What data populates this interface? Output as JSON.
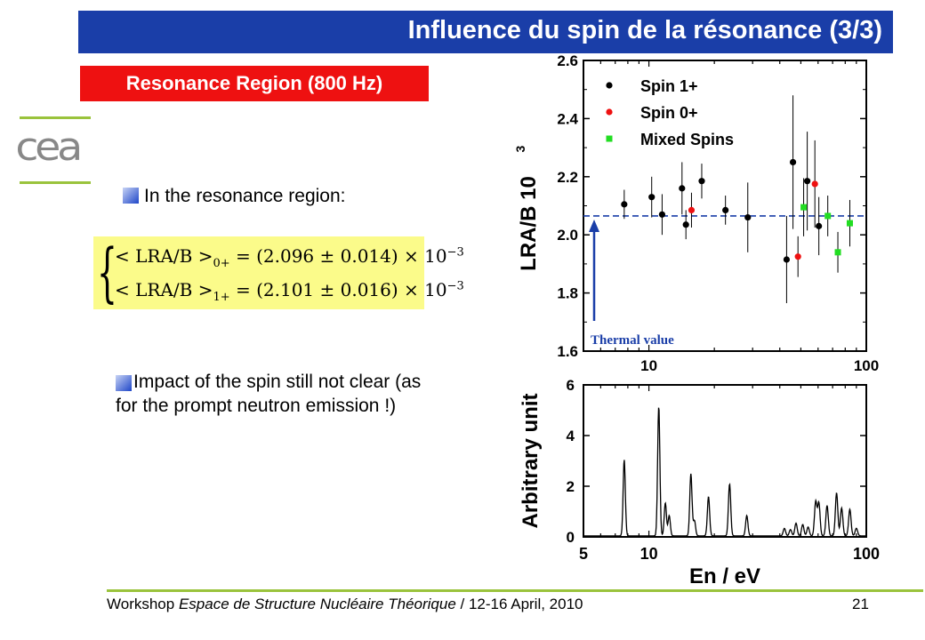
{
  "slide": {
    "title": "Influence du spin de la résonance (3/3)",
    "region_label": "Resonance Region (800 Hz)",
    "logo_text": "cea",
    "bullet1": "In the resonance region:",
    "formula": {
      "line1_open": "< LRA/B >",
      "line1_sub": "0+",
      "line1_value": " = (2.096 ± 0.014) × 10",
      "line1_exp": "−3",
      "line2_open": "< LRA/B >",
      "line2_sub": "1+",
      "line2_value": " = (2.101 ± 0.016) × 10",
      "line2_exp": "−3"
    },
    "bullet2": "Impact of the spin still not clear (as for the prompt neutron emission !)",
    "footer_prefix": "Workshop ",
    "footer_italic": "Espace de Structure Nucléaire Théorique",
    "footer_suffix": " / 12-16 April, 2010",
    "page_number": "21",
    "colors": {
      "title_bar": "#1a3ea8",
      "region_label": "#ee1111",
      "formula_bg": "#fbfb8a",
      "accent_line": "#9ac33c"
    }
  },
  "chart_data": [
    {
      "type": "scatter",
      "x_scale": "log",
      "xlim": [
        5,
        100
      ],
      "ylim": [
        1.6,
        2.6
      ],
      "x_ticks": [
        "10",
        "100"
      ],
      "y_ticks": [
        "1.6",
        "1.8",
        "2.0",
        "2.2",
        "2.4",
        "2.6"
      ],
      "ylabel": "LRA/B 10",
      "ylabel_exp": "3",
      "reference_line": {
        "y": 2.065,
        "label": "Thermal value",
        "color": "#1a3ea8"
      },
      "legend": [
        {
          "label": "Spin 1+",
          "color": "#000000",
          "marker": "circle"
        },
        {
          "label": "Spin 0+",
          "color": "#ee1111",
          "marker": "circle"
        },
        {
          "label": "Mixed Spins",
          "color": "#22dd22",
          "marker": "square"
        }
      ],
      "series": [
        {
          "name": "Spin 1+",
          "color": "#000000",
          "marker": "circle",
          "points": [
            {
              "x": 7.7,
              "y": 2.105,
              "err": 0.05
            },
            {
              "x": 10.3,
              "y": 2.13,
              "err": 0.07
            },
            {
              "x": 11.5,
              "y": 2.07,
              "err": 0.07
            },
            {
              "x": 14.2,
              "y": 2.16,
              "err": 0.09
            },
            {
              "x": 14.8,
              "y": 2.035,
              "err": 0.05
            },
            {
              "x": 17.5,
              "y": 2.185,
              "err": 0.06
            },
            {
              "x": 22.5,
              "y": 2.085,
              "err": 0.05
            },
            {
              "x": 28.5,
              "y": 2.06,
              "err": 0.12
            },
            {
              "x": 43.0,
              "y": 1.915,
              "err": 0.15
            },
            {
              "x": 46.0,
              "y": 2.25,
              "err": 0.23
            },
            {
              "x": 53.5,
              "y": 2.185,
              "err": 0.17
            },
            {
              "x": 60.5,
              "y": 2.03,
              "err": 0.1
            }
          ]
        },
        {
          "name": "Spin 0+",
          "color": "#ee1111",
          "marker": "circle",
          "points": [
            {
              "x": 15.7,
              "y": 2.085,
              "err": 0.06
            },
            {
              "x": 48.5,
              "y": 1.925,
              "err": 0.07
            },
            {
              "x": 58.0,
              "y": 2.175,
              "err": 0.15
            }
          ]
        },
        {
          "name": "Mixed Spins",
          "color": "#22dd22",
          "marker": "square",
          "points": [
            {
              "x": 51.5,
              "y": 2.095,
              "err": 0.1
            },
            {
              "x": 66.5,
              "y": 2.065,
              "err": 0.07
            },
            {
              "x": 74.0,
              "y": 1.94,
              "err": 0.07
            },
            {
              "x": 84.0,
              "y": 2.04,
              "err": 0.08
            }
          ]
        }
      ]
    },
    {
      "type": "line",
      "x_scale": "log",
      "xlim": [
        5,
        100
      ],
      "ylim": [
        0,
        6
      ],
      "x_ticks": [
        "5",
        "10",
        "100"
      ],
      "y_ticks": [
        "0",
        "2",
        "4",
        "6"
      ],
      "xlabel": "En / eV",
      "ylabel": "Arbitrary unit",
      "peaks": [
        {
          "x": 7.7,
          "h": 3.0
        },
        {
          "x": 11.1,
          "h": 5.1
        },
        {
          "x": 11.9,
          "h": 1.3
        },
        {
          "x": 12.4,
          "h": 0.8
        },
        {
          "x": 15.6,
          "h": 2.45
        },
        {
          "x": 16.2,
          "h": 0.6
        },
        {
          "x": 18.8,
          "h": 1.55
        },
        {
          "x": 23.5,
          "h": 2.05
        },
        {
          "x": 28.2,
          "h": 0.8
        },
        {
          "x": 42.0,
          "h": 0.3
        },
        {
          "x": 44.8,
          "h": 0.25
        },
        {
          "x": 47.5,
          "h": 0.5
        },
        {
          "x": 51.0,
          "h": 0.45
        },
        {
          "x": 54.0,
          "h": 0.35
        },
        {
          "x": 58.5,
          "h": 1.35
        },
        {
          "x": 60.5,
          "h": 1.3
        },
        {
          "x": 66.0,
          "h": 1.2
        },
        {
          "x": 73.0,
          "h": 1.7
        },
        {
          "x": 77.0,
          "h": 1.1
        },
        {
          "x": 84.0,
          "h": 1.05
        },
        {
          "x": 90.0,
          "h": 0.3
        }
      ]
    }
  ]
}
